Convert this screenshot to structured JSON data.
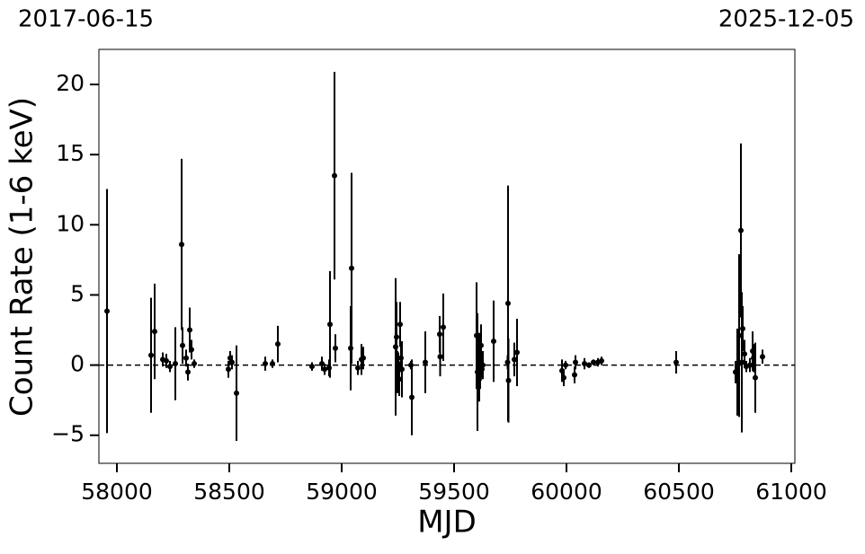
{
  "chart_data": {
    "type": "errorbar-scatter",
    "top_left_label": "2017-06-15",
    "top_right_label": "2025-12-05",
    "xlabel": "MJD",
    "ylabel": "Count Rate (1-6 keV)",
    "xlim": [
      57920,
      61016
    ],
    "ylim": [
      -7,
      22.5
    ],
    "xticks": [
      58000,
      58500,
      59000,
      59500,
      60000,
      60500,
      61000
    ],
    "yticks": [
      {
        "value": -5,
        "label": "−5"
      },
      0,
      5,
      10,
      15,
      20
    ],
    "hline": 0,
    "color": "#000000",
    "series": [
      {
        "name": "Count Rate",
        "x": [
          57956,
          58152,
          58168,
          58204,
          58220,
          58236,
          58260,
          58288,
          58292,
          58308,
          58316,
          58324,
          58332,
          58344,
          58496,
          58504,
          58512,
          58532,
          58660,
          58692,
          58716,
          58868,
          58912,
          58924,
          58948,
          58944,
          58968,
          58972,
          59044,
          59040,
          59072,
          59088,
          59096,
          59240,
          59244,
          59248,
          59252,
          59256,
          59260,
          59264,
          59268,
          59312,
          59308,
          59372,
          59436,
          59438,
          59452,
          59600,
          59604,
          59608,
          59612,
          59616,
          59620,
          59624,
          59628,
          59676,
          59740,
          59742,
          59738,
          59768,
          59780,
          59980,
          59988,
          59996,
          60036,
          60040,
          60080,
          60100,
          60120,
          60140,
          60156,
          60488,
          60752,
          60760,
          60768,
          60776,
          60780,
          60784,
          60792,
          60800,
          60816,
          60828,
          60832,
          60840,
          60872
        ],
        "values": [
          3.85,
          0.7,
          2.4,
          0.4,
          0.3,
          -0.1,
          0.1,
          8.6,
          1.4,
          0.5,
          -0.5,
          2.5,
          1.1,
          0.1,
          -0.3,
          0.5,
          0.2,
          -2.0,
          0.1,
          0.1,
          1.5,
          -0.1,
          0.1,
          -0.3,
          2.9,
          -0.2,
          13.5,
          1.2,
          6.9,
          1.2,
          -0.2,
          0.4,
          0.5,
          1.3,
          2.0,
          -0.5,
          0.1,
          -1.0,
          2.9,
          0.5,
          -0.3,
          -2.3,
          0.0,
          0.2,
          2.2,
          0.6,
          2.7,
          2.1,
          -0.5,
          1.2,
          -1.0,
          0.3,
          1.4,
          -0.3,
          0.0,
          1.7,
          4.4,
          -1.1,
          0.2,
          0.4,
          0.9,
          -0.4,
          -0.9,
          0.0,
          -0.7,
          0.2,
          0.1,
          0.0,
          0.2,
          0.2,
          0.3,
          0.2,
          -0.5,
          -0.5,
          2.1,
          9.6,
          0.2,
          2.6,
          0.8,
          -0.1,
          0.0,
          1.0,
          0.5,
          -0.9,
          0.6
        ],
        "errors": [
          8.7,
          4.1,
          3.4,
          0.5,
          0.5,
          0.4,
          2.6,
          6.1,
          1.3,
          0.6,
          0.6,
          1.6,
          0.7,
          0.3,
          0.6,
          0.5,
          0.5,
          3.4,
          0.5,
          0.3,
          1.3,
          0.3,
          0.5,
          0.4,
          3.8,
          0.6,
          7.4,
          1.0,
          6.8,
          3.0,
          0.5,
          1.1,
          0.8,
          4.9,
          2.5,
          1.5,
          0.8,
          1.2,
          1.6,
          1.0,
          2.0,
          2.7,
          0.3,
          2.2,
          1.3,
          1.4,
          2.4,
          3.8,
          4.2,
          1.1,
          1.6,
          2.0,
          1.5,
          0.6,
          1.0,
          2.9,
          8.4,
          3.0,
          0.5,
          1.2,
          2.4,
          0.8,
          0.6,
          0.3,
          0.6,
          0.5,
          0.4,
          0.2,
          0.2,
          0.3,
          0.3,
          0.8,
          0.8,
          3.1,
          5.8,
          6.2,
          5.0,
          1.6,
          1.0,
          0.4,
          0.5,
          1.4,
          1.0,
          2.5,
          0.5
        ]
      }
    ]
  }
}
